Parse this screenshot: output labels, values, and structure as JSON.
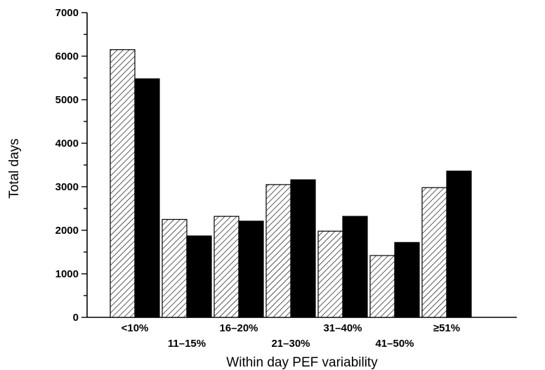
{
  "chart_data": {
    "type": "bar",
    "title": "",
    "xlabel": "Within day PEF variability",
    "ylabel": "Total days",
    "categories": [
      "<10%",
      "11–15%",
      "16–20%",
      "21–30%",
      "31–40%",
      "41–50%",
      "≥51%"
    ],
    "series": [
      {
        "fill": "hatched",
        "color": "#000000",
        "values": [
          6150,
          2250,
          2320,
          3050,
          1980,
          1420,
          2980
        ]
      },
      {
        "fill": "solid",
        "color": "#000000",
        "values": [
          5480,
          1870,
          2210,
          3160,
          2320,
          1720,
          3360
        ]
      }
    ],
    "ylim": [
      0,
      7000
    ],
    "yticks": [
      0,
      1000,
      2000,
      3000,
      4000,
      5000,
      6000,
      7000
    ],
    "ytick_labels": [
      "0",
      "1000",
      "2000",
      "3000",
      "4000",
      "5000",
      "6000",
      "7000"
    ],
    "minor_ytick_step": 500,
    "grid": false,
    "legend": "none",
    "category_label_rows": [
      "high",
      "low",
      "high",
      "low",
      "high",
      "low",
      "high"
    ]
  }
}
